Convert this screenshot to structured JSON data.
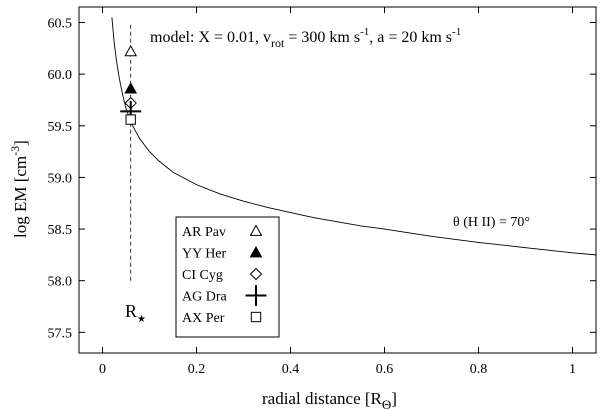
{
  "chart_data": {
    "type": "scatter",
    "title": "",
    "xlabel": "radial distance [R",
    "xlabel_sub": "Θ",
    "xlabel_close": "]",
    "ylabel": "log EM [cm",
    "ylabel_sup": "-3",
    "ylabel_close": "]",
    "xlim": [
      -0.05,
      1.05
    ],
    "ylim": [
      57.3,
      60.65
    ],
    "xticks": [
      0,
      0.2,
      0.4,
      0.6,
      0.8,
      1
    ],
    "xtick_labels": [
      "0",
      "0.2",
      "0.4",
      "0.6",
      "0.8",
      "1"
    ],
    "yticks": [
      57.5,
      58.0,
      58.5,
      59.0,
      59.5,
      60.0,
      60.5
    ],
    "ytick_labels": [
      "57.5",
      "58.0",
      "58.5",
      "59.0",
      "59.5",
      "60.0",
      "60.5"
    ],
    "grid": false,
    "model_annotation": {
      "prefix": "model: X = 0.01,  v",
      "sub": "rot",
      "mid": " = 300 km s",
      "sup1": "-1",
      "mid2": ",  a = 20 km s",
      "sup2": "-1"
    },
    "theta_annotation": "θ (H II) = 70°",
    "rstar_label": "R",
    "rstar_symbol": "★",
    "rstar_x": 0.06,
    "rstar_line_y": [
      58.0,
      60.5
    ],
    "model_curve": {
      "x": [
        0.02,
        0.025,
        0.03,
        0.035,
        0.04,
        0.045,
        0.05,
        0.06,
        0.07,
        0.08,
        0.1,
        0.12,
        0.15,
        0.2,
        0.25,
        0.3,
        0.35,
        0.4,
        0.45,
        0.5,
        0.55,
        0.6,
        0.7,
        0.8,
        0.9,
        1.0,
        1.05
      ],
      "y": [
        60.55,
        60.3,
        60.12,
        59.98,
        59.86,
        59.76,
        59.67,
        59.54,
        59.45,
        59.37,
        59.25,
        59.16,
        59.05,
        58.93,
        58.84,
        58.77,
        58.71,
        58.66,
        58.61,
        58.57,
        58.53,
        58.5,
        58.43,
        58.37,
        58.32,
        58.27,
        58.25
      ]
    },
    "series": [
      {
        "name": "AR Pav",
        "marker": "open-triangle",
        "x": 0.06,
        "y": 60.22
      },
      {
        "name": "YY Her",
        "marker": "filled-triangle",
        "x": 0.06,
        "y": 59.86
      },
      {
        "name": "CI Cyg",
        "marker": "open-diamond",
        "x": 0.06,
        "y": 59.72
      },
      {
        "name": "AG Dra",
        "marker": "plus",
        "x": 0.06,
        "y": 59.64
      },
      {
        "name": "AX Per",
        "marker": "open-square",
        "x": 0.06,
        "y": 59.56
      }
    ]
  }
}
